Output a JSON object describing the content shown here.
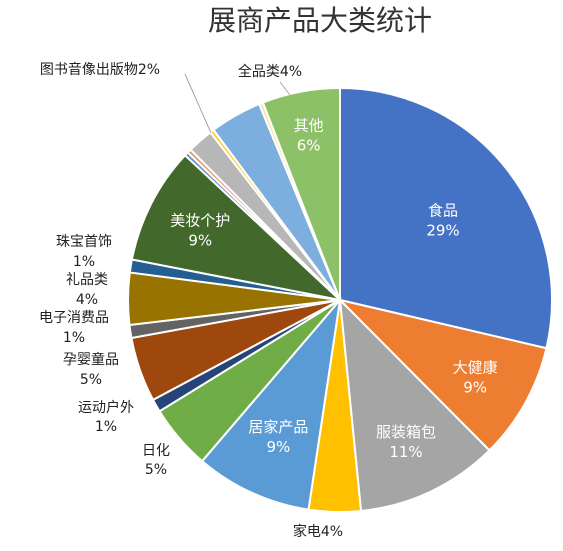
{
  "chart_data": {
    "type": "pie",
    "title": "展商产品大类统计",
    "start_angle_deg": 0,
    "direction": "clockwise",
    "slices": [
      {
        "name": "食品",
        "value": 29,
        "label_pct": "29%",
        "color": "#4472C4",
        "label_style": "inside"
      },
      {
        "name": "大健康",
        "value": 9,
        "label_pct": "9%",
        "color": "#ED7D31",
        "label_style": "inside"
      },
      {
        "name": "服装箱包",
        "value": 11,
        "label_pct": "11%",
        "color": "#A5A5A5",
        "label_style": "inside"
      },
      {
        "name": "家电",
        "value": 4,
        "label_pct": "4%",
        "color": "#FFC000",
        "label_style": "outside-inline"
      },
      {
        "name": "居家产品",
        "value": 9,
        "label_pct": "9%",
        "color": "#5B9BD5",
        "label_style": "inside"
      },
      {
        "name": "日化",
        "value": 5,
        "label_pct": "5%",
        "color": "#70AD47",
        "label_style": "outside"
      },
      {
        "name": "运动户外",
        "value": 1,
        "label_pct": "1%",
        "color": "#264478",
        "label_style": "outside"
      },
      {
        "name": "孕婴童品",
        "value": 5,
        "label_pct": "5%",
        "color": "#9E480E",
        "label_style": "outside"
      },
      {
        "name": "电子消费品",
        "value": 1,
        "label_pct": "1%",
        "color": "#636363",
        "label_style": "outside"
      },
      {
        "name": "礼品类",
        "value": 4,
        "label_pct": "4%",
        "color": "#997300",
        "label_style": "outside"
      },
      {
        "name": "珠宝首饰",
        "value": 1,
        "label_pct": "1%",
        "color": "#255E91",
        "label_style": "outside"
      },
      {
        "name": "美妆个护",
        "value": 9,
        "label_pct": "9%",
        "color": "#43682B",
        "label_style": "inside"
      },
      {
        "name": "",
        "value": 0.3,
        "label_pct": "",
        "color": "#698ED0",
        "label_style": "none"
      },
      {
        "name": "",
        "value": 0.3,
        "label_pct": "",
        "color": "#F1975A",
        "label_style": "none"
      },
      {
        "name": "图书音像出版物",
        "value": 2,
        "label_pct": "2%",
        "color": "#B7B7B7",
        "label_style": "outside-inline"
      },
      {
        "name": "",
        "value": 0.3,
        "label_pct": "",
        "color": "#FFCD33",
        "label_style": "none"
      },
      {
        "name": "全品类",
        "value": 4,
        "label_pct": "4%",
        "color": "#7CAFDD",
        "label_style": "outside-inline"
      },
      {
        "name": "",
        "value": 0.3,
        "label_pct": "",
        "color": "#F4E8A8",
        "label_style": "none"
      },
      {
        "name": "其他",
        "value": 6,
        "label_pct": "6%",
        "color": "#8CC168",
        "label_style": "inside"
      }
    ]
  }
}
